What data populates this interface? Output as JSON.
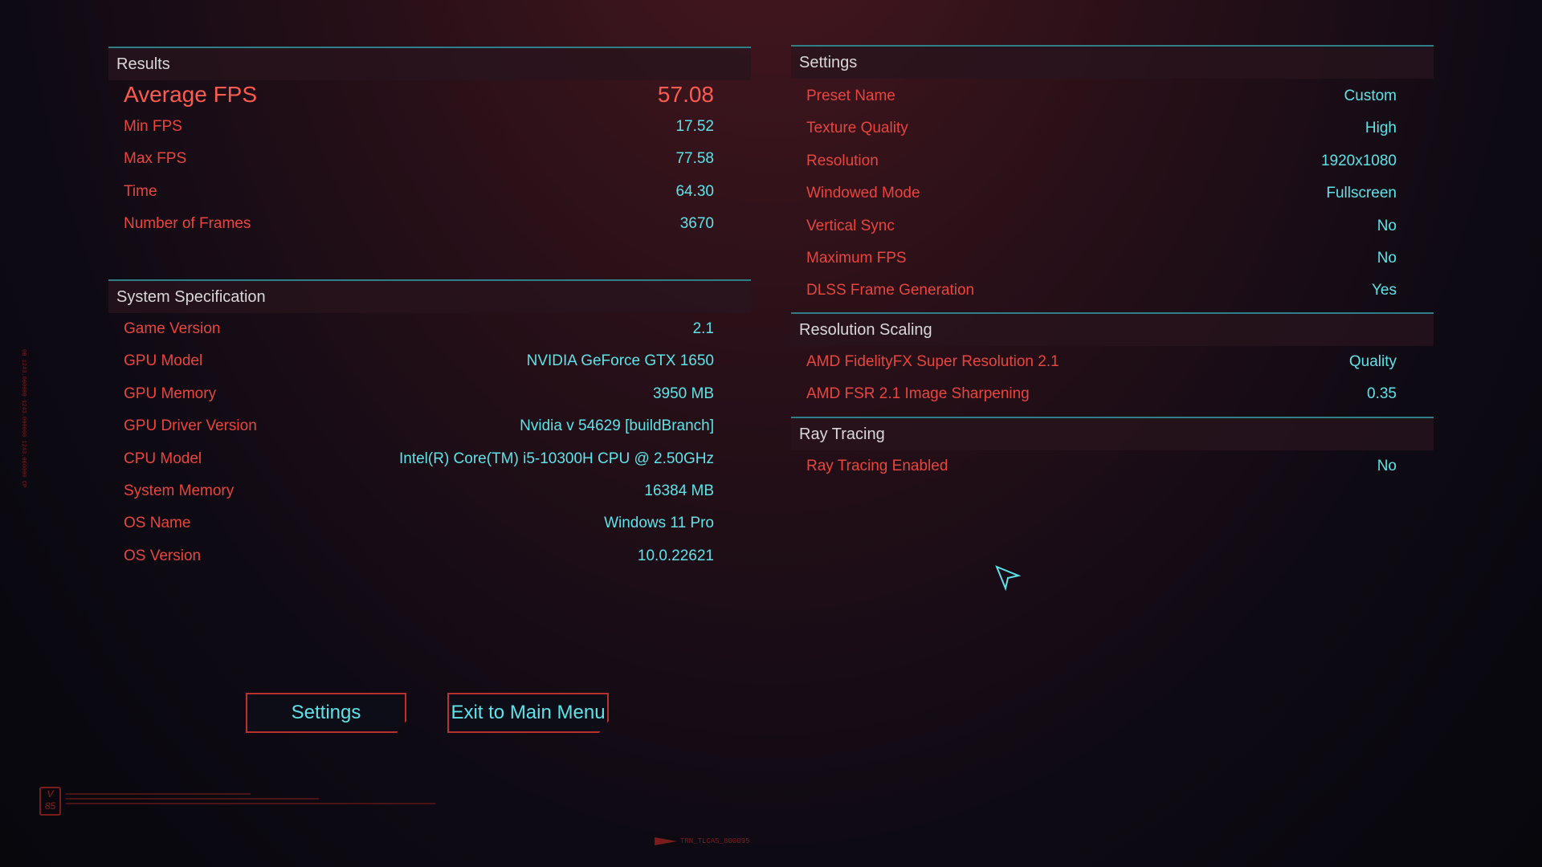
{
  "results": {
    "title": "Results",
    "average": {
      "label": "Average FPS",
      "value": "57.08"
    },
    "rows": [
      {
        "label": "Min FPS",
        "value": "17.52"
      },
      {
        "label": "Max FPS",
        "value": "77.58"
      },
      {
        "label": "Time",
        "value": "64.30"
      },
      {
        "label": "Number of Frames",
        "value": "3670"
      }
    ]
  },
  "system": {
    "title": "System Specification",
    "rows": [
      {
        "label": "Game Version",
        "value": "2.1"
      },
      {
        "label": "GPU Model",
        "value": "NVIDIA GeForce GTX 1650"
      },
      {
        "label": "GPU Memory",
        "value": "3950 MB"
      },
      {
        "label": "GPU Driver Version",
        "value": "Nvidia v 54629 [buildBranch]"
      },
      {
        "label": "CPU Model",
        "value": "Intel(R) Core(TM) i5-10300H CPU @ 2.50GHz"
      },
      {
        "label": "System Memory",
        "value": "16384 MB"
      },
      {
        "label": "OS Name",
        "value": "Windows 11 Pro"
      },
      {
        "label": "OS Version",
        "value": "10.0.22621"
      }
    ]
  },
  "settings": {
    "title": "Settings",
    "rows": [
      {
        "label": "Preset Name",
        "value": "Custom"
      },
      {
        "label": "Texture Quality",
        "value": "High"
      },
      {
        "label": "Resolution",
        "value": "1920x1080"
      },
      {
        "label": "Windowed Mode",
        "value": "Fullscreen"
      },
      {
        "label": "Vertical Sync",
        "value": "No"
      },
      {
        "label": "Maximum FPS",
        "value": "No"
      },
      {
        "label": "DLSS Frame Generation",
        "value": "Yes"
      }
    ]
  },
  "scaling": {
    "title": "Resolution Scaling",
    "rows": [
      {
        "label": "AMD FidelityFX Super Resolution 2.1",
        "value": "Quality"
      },
      {
        "label": "AMD FSR 2.1 Image Sharpening",
        "value": "0.35"
      }
    ]
  },
  "raytracing": {
    "title": "Ray Tracing",
    "rows": [
      {
        "label": "Ray Tracing Enabled",
        "value": "No"
      }
    ]
  },
  "buttons": {
    "settings": "Settings",
    "exit": "Exit to Main Menu"
  },
  "footer": {
    "badge_top": "V",
    "badge_bottom": "85",
    "code": "TRN_TLCAS_800095",
    "side_text": "0B 1243.000000 1243.000000 1243.000000 CP"
  }
}
